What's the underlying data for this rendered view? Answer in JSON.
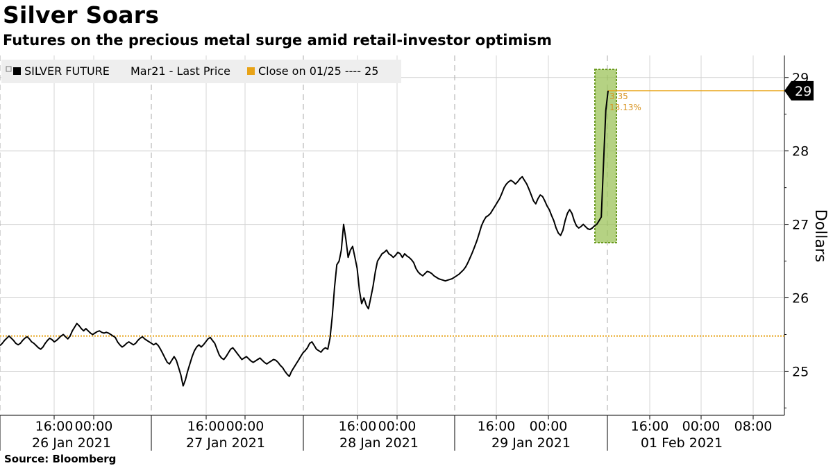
{
  "header": {
    "title": "Silver Soars",
    "subtitle": "Futures on the precious metal surge amid retail-investor optimism"
  },
  "footer": {
    "source": "Source: Bloomberg"
  },
  "colors": {
    "price_line": "#000000",
    "reference_line": "#e8a317",
    "highlight_fill": "#9cc35a",
    "highlight_stroke": "#6a9a20",
    "grid": "#cccccc",
    "legend_bg": "#eeeeee"
  },
  "chart_data": {
    "type": "line",
    "ylabel": "Dollars",
    "ylim": [
      24.4,
      29.3
    ],
    "yticks": [
      25,
      26,
      27,
      28,
      29
    ],
    "legend": {
      "placement": "top-left",
      "series_label": "SILVER FUTURE",
      "series_detail": "Mar21 - Last Price",
      "reference_label": "Close on 01/25 ---- 25"
    },
    "reference_value": 25.48,
    "last_value_label": "29",
    "last_value": 28.82,
    "annotation": {
      "change": "3.35",
      "percent": "13.13%"
    },
    "x_day_labels": [
      "26 Jan 2021",
      "27 Jan 2021",
      "28 Jan 2021",
      "29 Jan 2021",
      "01 Feb 2021"
    ],
    "x_time_labels": [
      "16:00",
      "00:00",
      "16:00",
      "00:00",
      "16:00",
      "00:00",
      "16:00",
      "00:00",
      "16:00",
      "00:00",
      "08:00"
    ],
    "series": [
      {
        "values": [
          25.35,
          25.38,
          25.42,
          25.45,
          25.48,
          25.45,
          25.42,
          25.38,
          25.36,
          25.38,
          25.42,
          25.45,
          25.47,
          25.44,
          25.4,
          25.38,
          25.35,
          25.32,
          25.3,
          25.33,
          25.38,
          25.42,
          25.45,
          25.43,
          25.4,
          25.42,
          25.45,
          25.48,
          25.5,
          25.47,
          25.44,
          25.48,
          25.55,
          25.6,
          25.65,
          25.62,
          25.58,
          25.55,
          25.58,
          25.55,
          25.52,
          25.5,
          25.52,
          25.54,
          25.55,
          25.53,
          25.52,
          25.53,
          25.52,
          25.5,
          25.48,
          25.46,
          25.4,
          25.36,
          25.33,
          25.35,
          25.38,
          25.4,
          25.38,
          25.36,
          25.38,
          25.42,
          25.45,
          25.47,
          25.44,
          25.42,
          25.4,
          25.38,
          25.36,
          25.38,
          25.35,
          25.3,
          25.24,
          25.18,
          25.12,
          25.1,
          25.15,
          25.2,
          25.15,
          25.05,
          24.95,
          24.8,
          24.88,
          25.0,
          25.1,
          25.2,
          25.28,
          25.33,
          25.36,
          25.33,
          25.36,
          25.4,
          25.44,
          25.46,
          25.42,
          25.38,
          25.3,
          25.22,
          25.18,
          25.16,
          25.2,
          25.25,
          25.3,
          25.32,
          25.28,
          25.24,
          25.2,
          25.16,
          25.18,
          25.2,
          25.17,
          25.14,
          25.12,
          25.14,
          25.16,
          25.18,
          25.15,
          25.12,
          25.1,
          25.12,
          25.14,
          25.16,
          25.15,
          25.12,
          25.08,
          25.05,
          25.0,
          24.96,
          24.93,
          25.0,
          25.05,
          25.1,
          25.15,
          25.2,
          25.25,
          25.28,
          25.32,
          25.38,
          25.4,
          25.35,
          25.3,
          25.28,
          25.26,
          25.3,
          25.32,
          25.3,
          25.45,
          25.75,
          26.15,
          26.45,
          26.5,
          26.65,
          27.0,
          26.8,
          26.55,
          26.65,
          26.7,
          26.55,
          26.4,
          26.1,
          25.92,
          26.0,
          25.9,
          25.85,
          26.0,
          26.15,
          26.35,
          26.5,
          26.55,
          26.6,
          26.62,
          26.65,
          26.6,
          26.58,
          26.55,
          26.58,
          26.62,
          26.6,
          26.55,
          26.6,
          26.57,
          26.55,
          26.52,
          26.48,
          26.4,
          26.35,
          26.32,
          26.3,
          26.33,
          26.36,
          26.35,
          26.33,
          26.3,
          26.28,
          26.26,
          26.25,
          26.24,
          26.23,
          26.24,
          26.25,
          26.26,
          26.28,
          26.3,
          26.32,
          26.35,
          26.38,
          26.42,
          26.48,
          26.55,
          26.62,
          26.7,
          26.78,
          26.88,
          26.98,
          27.05,
          27.1,
          27.12,
          27.15,
          27.2,
          27.25,
          27.3,
          27.35,
          27.42,
          27.5,
          27.55,
          27.58,
          27.6,
          27.58,
          27.55,
          27.58,
          27.62,
          27.65,
          27.6,
          27.55,
          27.48,
          27.4,
          27.32,
          27.28,
          27.35,
          27.4,
          27.38,
          27.32,
          27.25,
          27.2,
          27.12,
          27.05,
          26.95,
          26.88,
          26.85,
          26.92,
          27.05,
          27.15,
          27.2,
          27.15,
          27.05,
          26.98,
          26.95,
          26.97,
          27.0,
          26.97,
          26.94,
          26.93,
          26.95,
          26.98,
          27.0,
          27.05,
          27.1,
          27.85,
          28.55,
          28.82
        ]
      }
    ]
  }
}
